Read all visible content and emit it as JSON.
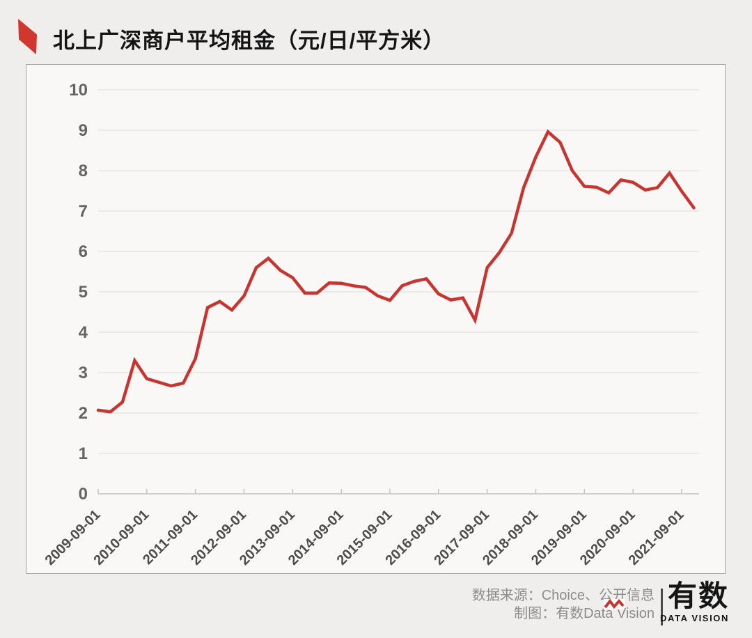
{
  "title": {
    "text": "北上广深商户平均租金（元/日/平方米）"
  },
  "footer": {
    "source": "数据来源：Choice、公开信息",
    "credit": "制图：有数Data Vision",
    "logo_text": "有数",
    "logo_subtitle": "DATA VISION"
  },
  "colors": {
    "line_red": "#c6352f",
    "marker_red": "#d0372f",
    "grid_gray": "#e3e1de",
    "axis_gray": "#c6c4c1",
    "panel_bg": "#f9f8f6",
    "page_bg": "#f0eeec"
  },
  "chart_data": {
    "type": "line",
    "title": "北上广深商户平均租金（元/日/平方米）",
    "unit": "元/日/平方米",
    "legend": "none",
    "grid": "horizontal",
    "ylim": [
      0,
      10
    ],
    "y_ticks": [
      0,
      1,
      2,
      3,
      4,
      5,
      6,
      7,
      8,
      9,
      10
    ],
    "x_tick_labels": [
      "2009-09-01",
      "2010-09-01",
      "2011-09-01",
      "2012-09-01",
      "2013-09-01",
      "2014-09-01",
      "2015-09-01",
      "2016-09-01",
      "2017-09-01",
      "2018-09-01",
      "2019-09-01",
      "2020-09-01",
      "2021-09-01"
    ],
    "x": [
      "2009-09-01",
      "2009-12-01",
      "2010-03-01",
      "2010-06-01",
      "2010-09-01",
      "2010-12-01",
      "2011-03-01",
      "2011-06-01",
      "2011-09-01",
      "2011-12-01",
      "2012-03-01",
      "2012-06-01",
      "2012-09-01",
      "2012-12-01",
      "2013-03-01",
      "2013-06-01",
      "2013-09-01",
      "2013-12-01",
      "2014-03-01",
      "2014-06-01",
      "2014-09-01",
      "2014-12-01",
      "2015-03-01",
      "2015-06-01",
      "2015-09-01",
      "2015-12-01",
      "2016-03-01",
      "2016-06-01",
      "2016-09-01",
      "2016-12-01",
      "2017-03-01",
      "2017-06-01",
      "2017-09-01",
      "2017-12-01",
      "2018-03-01",
      "2018-06-01",
      "2018-09-01",
      "2018-12-01",
      "2019-03-01",
      "2019-06-01",
      "2019-09-01",
      "2019-12-01",
      "2020-03-01",
      "2020-06-01",
      "2020-09-01",
      "2020-12-01",
      "2021-03-01",
      "2021-06-01",
      "2021-09-01",
      "2021-12-01"
    ],
    "series": [
      {
        "name": "北上广深商户平均租金",
        "values": [
          2.07,
          2.03,
          2.27,
          3.3,
          2.85,
          2.76,
          2.67,
          2.74,
          3.35,
          4.61,
          4.76,
          4.55,
          4.9,
          5.6,
          5.83,
          5.53,
          5.35,
          4.97,
          4.97,
          5.22,
          5.21,
          5.15,
          5.11,
          4.9,
          4.79,
          5.15,
          5.26,
          5.32,
          4.95,
          4.8,
          4.85,
          4.3,
          5.6,
          5.97,
          6.45,
          7.58,
          8.34,
          8.96,
          8.7,
          8.0,
          7.61,
          7.59,
          7.45,
          7.77,
          7.71,
          7.52,
          7.58,
          7.94,
          7.49,
          7.08
        ]
      }
    ],
    "line_color": "#c6352f"
  }
}
